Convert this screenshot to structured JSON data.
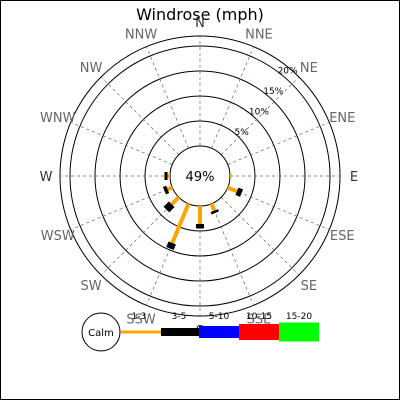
{
  "chart_data": {
    "type": "windrose",
    "title": "Windrose (mph)",
    "calm_label": "Calm",
    "calm_percent_label": "49%",
    "ring_labels": [
      "5%",
      "10%",
      "15%",
      "20%"
    ],
    "rings": [
      5,
      10,
      15,
      20
    ],
    "rmax": 22,
    "directions": [
      "N",
      "NNE",
      "NE",
      "ENE",
      "E",
      "ESE",
      "SE",
      "SSE",
      "S",
      "SSW",
      "SW",
      "WSW",
      "W",
      "WNW",
      "NW",
      "NNW"
    ],
    "bins": [
      {
        "name": "1-3",
        "color": "#ffa500"
      },
      {
        "name": "3-5",
        "color": "#000000"
      },
      {
        "name": "5-10",
        "color": "#0000ff"
      },
      {
        "name": "10-15",
        "color": "#ff0000"
      },
      {
        "name": "15-20",
        "color": "#00ff00"
      }
    ],
    "series": [
      {
        "direction": "E",
        "values": [
          0.3,
          0.0,
          0,
          0,
          0
        ]
      },
      {
        "direction": "ESE",
        "values": [
          2.0,
          1.0,
          0,
          0,
          0
        ]
      },
      {
        "direction": "SSE",
        "values": [
          1.5,
          0.5,
          0,
          0,
          0
        ]
      },
      {
        "direction": "S",
        "values": [
          3.6,
          0.9,
          0,
          0,
          0
        ]
      },
      {
        "direction": "SSW",
        "values": [
          8.5,
          1.2,
          0,
          0,
          0
        ]
      },
      {
        "direction": "SW",
        "values": [
          2.0,
          1.5,
          0,
          0,
          0
        ]
      },
      {
        "direction": "WSW",
        "values": [
          1.0,
          0.7,
          0,
          0,
          0
        ]
      },
      {
        "direction": "W",
        "values": [
          0.5,
          0.6,
          0,
          0,
          0
        ]
      }
    ]
  }
}
